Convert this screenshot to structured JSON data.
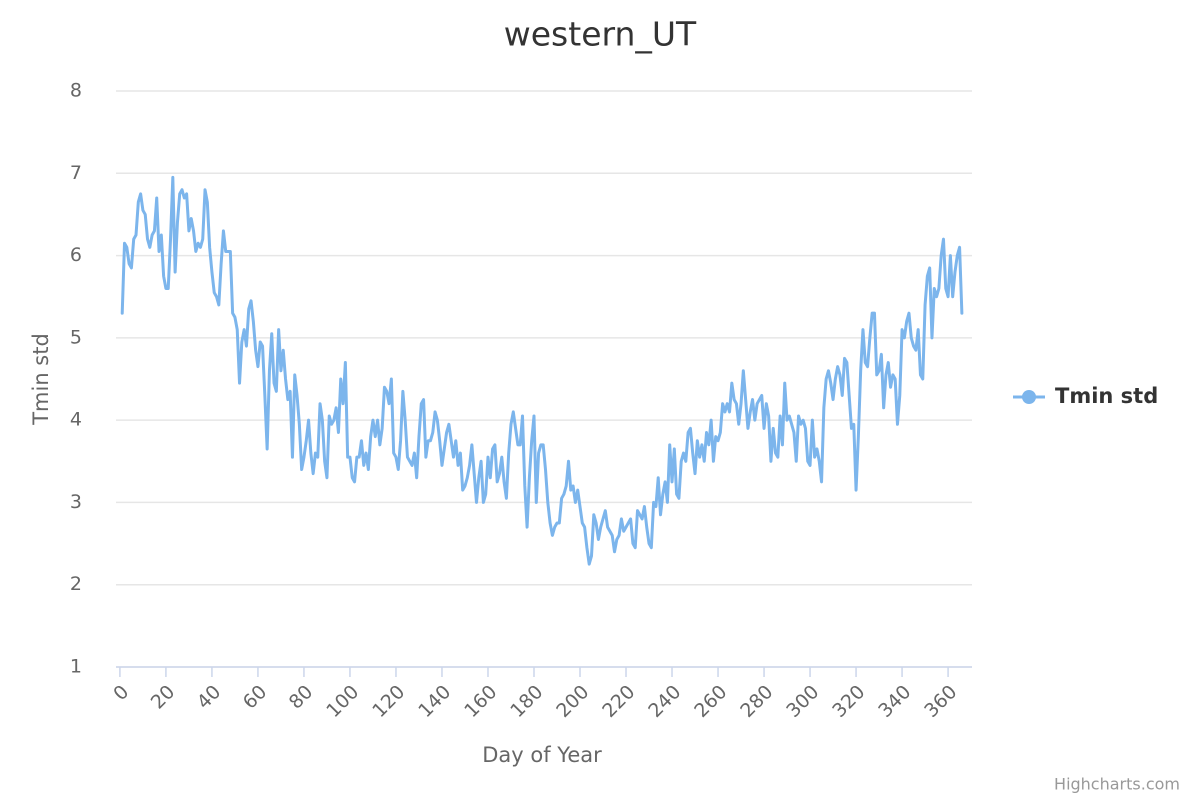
{
  "chart_data": {
    "type": "line",
    "title": "western_UT",
    "x_label": "Day of Year",
    "y_label": "Tmin std",
    "credits": "Highcharts.com",
    "legend": "right",
    "grid": true,
    "xlim": [
      -1.7,
      370.4
    ],
    "xticks": [
      0,
      20,
      40,
      60,
      80,
      100,
      120,
      140,
      160,
      180,
      200,
      220,
      240,
      260,
      280,
      300,
      320,
      340,
      360
    ],
    "ylim": [
      1,
      8
    ],
    "yticks": [
      1,
      2,
      3,
      4,
      5,
      6,
      7,
      8
    ],
    "x": [
      1,
      2,
      3,
      4,
      5,
      6,
      7,
      8,
      9,
      10,
      11,
      12,
      13,
      14,
      15,
      16,
      17,
      18,
      19,
      20,
      21,
      22,
      23,
      24,
      25,
      26,
      27,
      28,
      29,
      30,
      31,
      32,
      33,
      34,
      35,
      36,
      37,
      38,
      39,
      40,
      41,
      42,
      43,
      44,
      45,
      46,
      47,
      48,
      49,
      50,
      51,
      52,
      53,
      54,
      55,
      56,
      57,
      58,
      59,
      60,
      61,
      62,
      63,
      64,
      65,
      66,
      67,
      68,
      69,
      70,
      71,
      72,
      73,
      74,
      75,
      76,
      77,
      78,
      79,
      80,
      81,
      82,
      83,
      84,
      85,
      86,
      87,
      88,
      89,
      90,
      91,
      92,
      93,
      94,
      95,
      96,
      97,
      98,
      99,
      100,
      101,
      102,
      103,
      104,
      105,
      106,
      107,
      108,
      109,
      110,
      111,
      112,
      113,
      114,
      115,
      116,
      117,
      118,
      119,
      120,
      121,
      122,
      123,
      124,
      125,
      126,
      127,
      128,
      129,
      130,
      131,
      132,
      133,
      134,
      135,
      136,
      137,
      138,
      139,
      140,
      141,
      142,
      143,
      144,
      145,
      146,
      147,
      148,
      149,
      150,
      151,
      152,
      153,
      154,
      155,
      156,
      157,
      158,
      159,
      160,
      161,
      162,
      163,
      164,
      165,
      166,
      167,
      168,
      169,
      170,
      171,
      172,
      173,
      174,
      175,
      176,
      177,
      178,
      179,
      180,
      181,
      182,
      183,
      184,
      185,
      186,
      187,
      188,
      189,
      190,
      191,
      192,
      193,
      194,
      195,
      196,
      197,
      198,
      199,
      200,
      201,
      202,
      203,
      204,
      205,
      206,
      207,
      208,
      209,
      210,
      211,
      212,
      213,
      214,
      215,
      216,
      217,
      218,
      219,
      220,
      221,
      222,
      223,
      224,
      225,
      226,
      227,
      228,
      229,
      230,
      231,
      232,
      233,
      234,
      235,
      236,
      237,
      238,
      239,
      240,
      241,
      242,
      243,
      244,
      245,
      246,
      247,
      248,
      249,
      250,
      251,
      252,
      253,
      254,
      255,
      256,
      257,
      258,
      259,
      260,
      261,
      262,
      263,
      264,
      265,
      266,
      267,
      268,
      269,
      270,
      271,
      272,
      273,
      274,
      275,
      276,
      277,
      278,
      279,
      280,
      281,
      282,
      283,
      284,
      285,
      286,
      287,
      288,
      289,
      290,
      291,
      292,
      293,
      294,
      295,
      296,
      297,
      298,
      299,
      300,
      301,
      302,
      303,
      304,
      305,
      306,
      307,
      308,
      309,
      310,
      311,
      312,
      313,
      314,
      315,
      316,
      317,
      318,
      319,
      320,
      321,
      322,
      323,
      324,
      325,
      326,
      327,
      328,
      329,
      330,
      331,
      332,
      333,
      334,
      335,
      336,
      337,
      338,
      339,
      340,
      341,
      342,
      343,
      344,
      345,
      346,
      347,
      348,
      349,
      350,
      351,
      352,
      353,
      354,
      355,
      356,
      357,
      358,
      359,
      360,
      361,
      362,
      363,
      364,
      365,
      366
    ],
    "series": [
      {
        "name": "Tmin std",
        "color": "#7cb5ec",
        "values": [
          5.3,
          6.15,
          6.1,
          5.9,
          5.85,
          6.2,
          6.25,
          6.65,
          6.75,
          6.55,
          6.5,
          6.2,
          6.1,
          6.25,
          6.3,
          6.7,
          6.05,
          6.25,
          5.75,
          5.6,
          5.6,
          6.2,
          6.95,
          5.8,
          6.4,
          6.75,
          6.8,
          6.7,
          6.75,
          6.3,
          6.45,
          6.3,
          6.05,
          6.15,
          6.1,
          6.2,
          6.8,
          6.65,
          6.1,
          5.8,
          5.55,
          5.5,
          5.4,
          5.9,
          6.3,
          6.05,
          6.05,
          6.05,
          5.3,
          5.25,
          5.1,
          4.45,
          4.95,
          5.1,
          4.9,
          5.35,
          5.45,
          5.2,
          4.85,
          4.65,
          4.95,
          4.9,
          4.3,
          3.65,
          4.6,
          5.05,
          4.45,
          4.35,
          5.1,
          4.6,
          4.85,
          4.5,
          4.25,
          4.35,
          3.55,
          4.55,
          4.3,
          3.95,
          3.4,
          3.55,
          3.75,
          4.0,
          3.6,
          3.35,
          3.6,
          3.55,
          4.2,
          4.0,
          3.5,
          3.3,
          4.05,
          3.95,
          4.0,
          4.15,
          3.85,
          4.5,
          4.2,
          4.7,
          3.55,
          3.55,
          3.3,
          3.25,
          3.55,
          3.55,
          3.75,
          3.45,
          3.6,
          3.4,
          3.8,
          4.0,
          3.8,
          4.0,
          3.7,
          3.9,
          4.4,
          4.35,
          4.2,
          4.5,
          3.6,
          3.55,
          3.4,
          3.75,
          4.35,
          4.0,
          3.55,
          3.5,
          3.45,
          3.6,
          3.3,
          3.8,
          4.2,
          4.25,
          3.55,
          3.75,
          3.75,
          3.85,
          4.1,
          4.0,
          3.75,
          3.45,
          3.65,
          3.85,
          3.95,
          3.75,
          3.55,
          3.75,
          3.45,
          3.6,
          3.15,
          3.2,
          3.3,
          3.45,
          3.7,
          3.35,
          3.0,
          3.3,
          3.5,
          3.0,
          3.1,
          3.55,
          3.3,
          3.65,
          3.7,
          3.25,
          3.35,
          3.55,
          3.25,
          3.05,
          3.6,
          3.95,
          4.1,
          3.9,
          3.7,
          3.7,
          4.05,
          3.2,
          2.7,
          3.3,
          3.75,
          4.05,
          3.0,
          3.6,
          3.7,
          3.7,
          3.4,
          3.0,
          2.75,
          2.6,
          2.7,
          2.75,
          2.75,
          3.05,
          3.1,
          3.2,
          3.5,
          3.15,
          3.2,
          3.0,
          3.15,
          2.95,
          2.75,
          2.7,
          2.45,
          2.25,
          2.35,
          2.85,
          2.75,
          2.55,
          2.7,
          2.8,
          2.9,
          2.7,
          2.65,
          2.6,
          2.4,
          2.55,
          2.6,
          2.8,
          2.65,
          2.7,
          2.75,
          2.8,
          2.5,
          2.45,
          2.9,
          2.85,
          2.8,
          2.95,
          2.7,
          2.5,
          2.45,
          3.0,
          2.95,
          3.3,
          2.85,
          3.1,
          3.25,
          3.0,
          3.7,
          3.25,
          3.65,
          3.1,
          3.05,
          3.5,
          3.6,
          3.5,
          3.85,
          3.9,
          3.6,
          3.35,
          3.75,
          3.55,
          3.7,
          3.5,
          3.85,
          3.7,
          4.0,
          3.5,
          3.8,
          3.75,
          3.85,
          4.2,
          4.1,
          4.2,
          4.1,
          4.45,
          4.25,
          4.2,
          3.95,
          4.2,
          4.6,
          4.25,
          3.9,
          4.1,
          4.25,
          4.0,
          4.2,
          4.25,
          4.3,
          3.9,
          4.2,
          4.05,
          3.5,
          3.9,
          3.6,
          3.55,
          4.05,
          3.7,
          4.45,
          4.0,
          4.05,
          3.95,
          3.85,
          3.5,
          4.05,
          3.95,
          4.0,
          3.9,
          3.5,
          3.45,
          4.0,
          3.55,
          3.65,
          3.5,
          3.25,
          4.15,
          4.5,
          4.6,
          4.45,
          4.25,
          4.5,
          4.65,
          4.55,
          4.3,
          4.75,
          4.7,
          4.3,
          3.9,
          3.95,
          3.15,
          3.8,
          4.6,
          5.1,
          4.7,
          4.65,
          5.0,
          5.3,
          5.3,
          4.55,
          4.6,
          4.8,
          4.15,
          4.55,
          4.7,
          4.4,
          4.55,
          4.5,
          3.95,
          4.3,
          5.1,
          5.0,
          5.2,
          5.3,
          5.0,
          4.9,
          4.85,
          5.1,
          4.55,
          4.5,
          5.4,
          5.75,
          5.85,
          5.0,
          5.6,
          5.5,
          5.6,
          6.0,
          6.2,
          5.6,
          5.5,
          6.0,
          5.5,
          5.8,
          6.0,
          6.1,
          5.3
        ]
      }
    ]
  }
}
